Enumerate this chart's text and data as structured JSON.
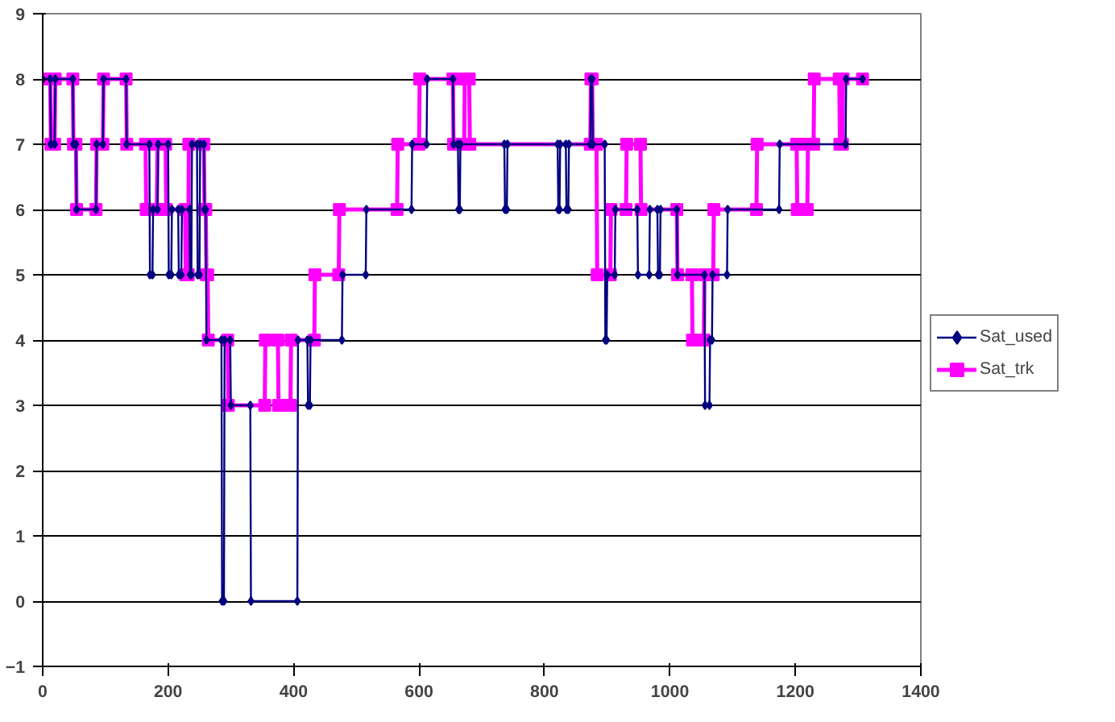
{
  "chart_data": {
    "type": "line",
    "xlim": [
      0,
      1400
    ],
    "xticks": [
      0,
      200,
      400,
      600,
      800,
      1000,
      1200,
      1400
    ],
    "ylim": [
      -1,
      9
    ],
    "yticks": [
      -1,
      0,
      1,
      2,
      3,
      4,
      5,
      6,
      7,
      8,
      9
    ],
    "grid": "y",
    "legend": "right",
    "series": [
      {
        "name": "Sat_trk",
        "color": "#ff00ff",
        "marker": "square",
        "x": [
          0,
          12,
          13,
          19,
          20,
          48,
          49,
          53,
          54,
          85,
          86,
          96,
          97,
          133,
          134,
          164,
          165,
          182,
          183,
          196,
          197,
          227,
          228,
          232,
          233,
          257,
          258,
          260,
          261,
          263,
          264,
          295,
          296,
          354,
          355,
          375,
          376,
          395,
          396,
          433,
          434,
          472,
          473,
          565,
          566,
          600,
          601,
          654,
          655,
          672,
          673,
          680,
          681,
          873,
          874,
          876,
          877,
          883,
          884,
          905,
          906,
          930,
          931,
          953,
          954,
          1011,
          1012,
          1035,
          1036,
          1054,
          1055,
          1069,
          1070,
          1138,
          1139,
          1202,
          1203,
          1219,
          1220,
          1229,
          1230,
          1270,
          1271,
          1275,
          1276,
          1307
        ],
        "values": [
          8,
          8,
          7,
          7,
          8,
          8,
          7,
          7,
          6,
          6,
          7,
          7,
          8,
          8,
          7,
          7,
          6,
          6,
          7,
          7,
          6,
          6,
          5,
          5,
          7,
          7,
          6,
          6,
          5,
          5,
          4,
          4,
          3,
          3,
          4,
          4,
          3,
          3,
          4,
          4,
          5,
          5,
          6,
          6,
          7,
          7,
          8,
          8,
          7,
          7,
          8,
          8,
          7,
          7,
          8,
          8,
          7,
          7,
          5,
          5,
          6,
          6,
          7,
          7,
          6,
          6,
          5,
          5,
          4,
          4,
          5,
          5,
          6,
          6,
          7,
          7,
          6,
          6,
          7,
          7,
          8,
          8,
          7,
          7,
          8,
          8
        ]
      },
      {
        "name": "Sat_used",
        "color": "#000080",
        "marker": "diamond",
        "x": [
          0,
          12,
          13,
          19,
          20,
          48,
          49,
          53,
          54,
          85,
          86,
          96,
          97,
          133,
          134,
          170,
          171,
          175,
          176,
          183,
          184,
          200,
          201,
          205,
          206,
          216,
          217,
          221,
          222,
          234,
          235,
          237,
          238,
          246,
          247,
          250,
          251,
          257,
          258,
          260,
          261,
          285,
          286,
          289,
          290,
          299,
          300,
          331,
          332,
          406,
          407,
          422,
          423,
          426,
          427,
          477,
          478,
          515,
          516,
          588,
          589,
          612,
          613,
          654,
          655,
          662,
          663,
          665,
          666,
          736,
          737,
          740,
          741,
          821,
          822,
          824,
          825,
          834,
          835,
          838,
          839,
          873,
          874,
          876,
          877,
          896,
          897,
          899,
          900,
          912,
          913,
          948,
          949,
          967,
          968,
          980,
          981,
          984,
          985,
          1011,
          1012,
          1055,
          1056,
          1063,
          1064,
          1067,
          1068,
          1091,
          1092,
          1174,
          1175,
          1280,
          1281,
          1307
        ],
        "values": [
          8,
          8,
          7,
          7,
          8,
          8,
          7,
          7,
          6,
          6,
          7,
          7,
          8,
          8,
          7,
          7,
          5,
          5,
          6,
          6,
          7,
          7,
          5,
          5,
          6,
          6,
          5,
          5,
          6,
          6,
          5,
          5,
          7,
          7,
          5,
          5,
          7,
          7,
          6,
          6,
          4,
          4,
          0,
          0,
          4,
          4,
          3,
          3,
          0,
          0,
          4,
          4,
          3,
          3,
          4,
          4,
          5,
          5,
          6,
          6,
          7,
          7,
          8,
          8,
          7,
          7,
          6,
          6,
          7,
          7,
          6,
          6,
          7,
          7,
          6,
          6,
          7,
          7,
          6,
          6,
          7,
          7,
          8,
          8,
          7,
          7,
          4,
          4,
          5,
          5,
          6,
          6,
          5,
          5,
          6,
          6,
          5,
          5,
          6,
          6,
          5,
          5,
          3,
          3,
          4,
          4,
          5,
          5,
          6,
          6,
          7,
          7,
          8,
          8
        ]
      }
    ]
  }
}
